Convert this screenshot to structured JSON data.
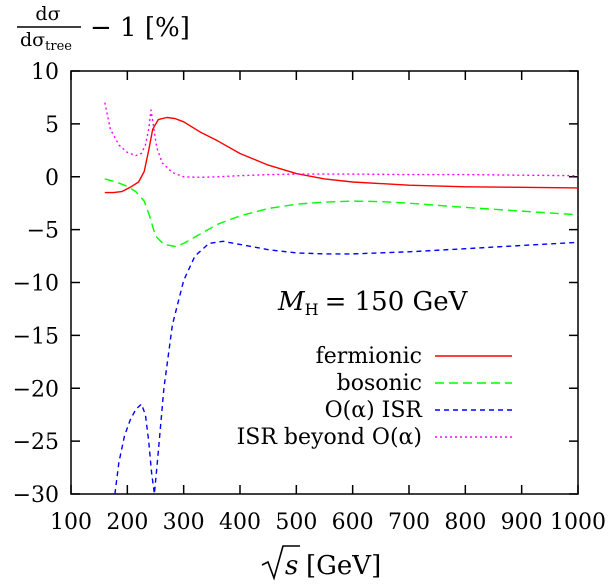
{
  "chart_data": {
    "type": "line",
    "ylabel": "dσ/dσ_tree − 1 [%]",
    "ylabel_parts": {
      "num": "dσ",
      "den": "dσ",
      "den_sub": "tree",
      "rest": "− 1 [%]"
    },
    "xlabel": "√s [GeV]",
    "xlabel_parts": {
      "rad": "s",
      "unit": "[GeV]"
    },
    "annotation": "M_H = 150 GeV",
    "annotation_parts": {
      "sym": "M",
      "sub": "H",
      "rest": "= 150 GeV"
    },
    "xlim": [
      100,
      1000
    ],
    "ylim": [
      -30,
      10
    ],
    "x_ticks": [
      100,
      200,
      300,
      400,
      500,
      600,
      700,
      800,
      900,
      1000
    ],
    "y_ticks": [
      10,
      5,
      0,
      -5,
      -10,
      -15,
      -20,
      -25,
      -30
    ],
    "x_tick_labels": [
      "100",
      "200",
      "300",
      "400",
      "500",
      "600",
      "700",
      "800",
      "900",
      "1000"
    ],
    "y_tick_labels": [
      "10",
      "5",
      "0",
      "−5",
      "−10",
      "−15",
      "−20",
      "−25",
      "−30"
    ],
    "grid": false,
    "legend_position": "lower-right",
    "series": [
      {
        "name": "fermionic",
        "color": "#ff0000",
        "dash": "solid",
        "points": [
          [
            160,
            -1.5
          ],
          [
            175,
            -1.5
          ],
          [
            190,
            -1.4
          ],
          [
            205,
            -1.0
          ],
          [
            220,
            -0.5
          ],
          [
            230,
            0.5
          ],
          [
            238,
            2.5
          ],
          [
            245,
            4.5
          ],
          [
            255,
            5.4
          ],
          [
            270,
            5.6
          ],
          [
            285,
            5.5
          ],
          [
            300,
            5.2
          ],
          [
            330,
            4.2
          ],
          [
            360,
            3.4
          ],
          [
            400,
            2.2
          ],
          [
            450,
            1.1
          ],
          [
            500,
            0.3
          ],
          [
            550,
            -0.2
          ],
          [
            600,
            -0.5
          ],
          [
            700,
            -0.8
          ],
          [
            800,
            -0.95
          ],
          [
            900,
            -1.0
          ],
          [
            1000,
            -1.05
          ]
        ]
      },
      {
        "name": "bosonic",
        "color": "#00ff00",
        "dash": "long",
        "points": [
          [
            160,
            -0.2
          ],
          [
            180,
            -0.5
          ],
          [
            200,
            -0.9
          ],
          [
            215,
            -1.4
          ],
          [
            230,
            -2.3
          ],
          [
            240,
            -3.8
          ],
          [
            250,
            -5.6
          ],
          [
            265,
            -6.4
          ],
          [
            285,
            -6.6
          ],
          [
            300,
            -6.3
          ],
          [
            330,
            -5.4
          ],
          [
            360,
            -4.5
          ],
          [
            400,
            -3.7
          ],
          [
            450,
            -3.0
          ],
          [
            500,
            -2.6
          ],
          [
            550,
            -2.4
          ],
          [
            600,
            -2.3
          ],
          [
            650,
            -2.35
          ],
          [
            700,
            -2.5
          ],
          [
            800,
            -2.9
          ],
          [
            900,
            -3.25
          ],
          [
            1000,
            -3.6
          ]
        ]
      },
      {
        "name": "O(α) ISR",
        "color": "#0000ff",
        "dash": "short",
        "points": [
          [
            178,
            -30
          ],
          [
            185,
            -27
          ],
          [
            195,
            -24.5
          ],
          [
            205,
            -23
          ],
          [
            215,
            -22
          ],
          [
            225,
            -21.5
          ],
          [
            232,
            -22.5
          ],
          [
            238,
            -25
          ],
          [
            243,
            -28
          ],
          [
            248,
            -30
          ],
          [
            255,
            -26
          ],
          [
            265,
            -20
          ],
          [
            280,
            -14
          ],
          [
            300,
            -9.8
          ],
          [
            320,
            -7.5
          ],
          [
            345,
            -6.3
          ],
          [
            370,
            -6.1
          ],
          [
            400,
            -6.4
          ],
          [
            450,
            -6.9
          ],
          [
            500,
            -7.2
          ],
          [
            550,
            -7.3
          ],
          [
            600,
            -7.3
          ],
          [
            700,
            -7.1
          ],
          [
            800,
            -6.8
          ],
          [
            900,
            -6.5
          ],
          [
            1000,
            -6.2
          ]
        ]
      },
      {
        "name": "ISR beyond O(α)",
        "color": "#ff00ff",
        "dash": "dotted",
        "points": [
          [
            160,
            7.0
          ],
          [
            170,
            4.5
          ],
          [
            185,
            3.0
          ],
          [
            200,
            2.3
          ],
          [
            215,
            2.0
          ],
          [
            225,
            2.2
          ],
          [
            232,
            3.0
          ],
          [
            238,
            4.5
          ],
          [
            242,
            6.3
          ],
          [
            246,
            5.0
          ],
          [
            252,
            2.8
          ],
          [
            262,
            1.3
          ],
          [
            280,
            0.4
          ],
          [
            300,
            0.0
          ],
          [
            330,
            -0.05
          ],
          [
            360,
            0.0
          ],
          [
            400,
            0.1
          ],
          [
            450,
            0.2
          ],
          [
            500,
            0.25
          ],
          [
            550,
            0.25
          ],
          [
            600,
            0.25
          ],
          [
            700,
            0.2
          ],
          [
            800,
            0.2
          ],
          [
            900,
            0.15
          ],
          [
            1000,
            0.1
          ]
        ]
      }
    ]
  }
}
